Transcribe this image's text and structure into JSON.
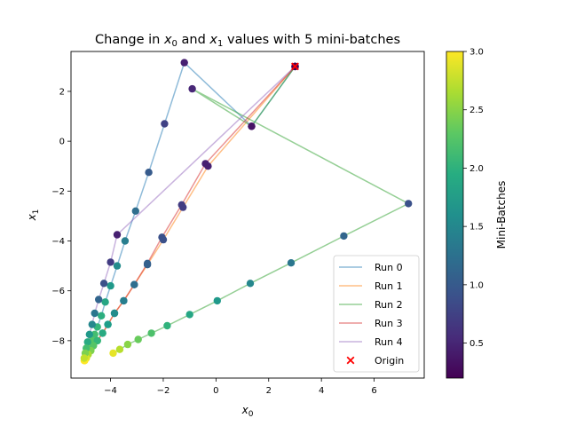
{
  "chart_data": {
    "type": "line",
    "title": {
      "prefix": "Change in ",
      "v0": "x",
      "s0": "0",
      "mid": " and ",
      "v1": "x",
      "s1": "1",
      "suffix": " values with 5 mini-batches"
    },
    "xlabel": {
      "var": "x",
      "sub": "0"
    },
    "ylabel": {
      "var": "x",
      "sub": "1"
    },
    "xlim": [
      -5.5,
      7.9
    ],
    "ylim": [
      -9.5,
      3.6
    ],
    "xticks": [
      -4,
      -2,
      0,
      2,
      4,
      6
    ],
    "yticks": [
      -8,
      -6,
      -4,
      -2,
      0,
      2
    ],
    "grid": false,
    "legend_position": "lower-right",
    "colorbar": {
      "label": "Mini-Batches",
      "range": [
        0.2,
        3.0
      ],
      "ticks": [
        0.5,
        1.0,
        1.5,
        2.0,
        2.5,
        3.0
      ],
      "tick_labels": [
        "0.5",
        "1.0",
        "1.5",
        "2.0",
        "2.5",
        "3.0"
      ]
    },
    "series": [
      {
        "name": "Run 0",
        "color": "#1f77b4",
        "points": [
          {
            "x": 3.0,
            "y": 3.0,
            "c": 0.2
          },
          {
            "x": 1.35,
            "y": 0.6,
            "c": 0.35
          },
          {
            "x": -1.2,
            "y": 3.15,
            "c": 0.45
          },
          {
            "x": -1.95,
            "y": 0.7,
            "c": 0.75
          },
          {
            "x": -2.55,
            "y": -1.25,
            "c": 1.0
          },
          {
            "x": -3.05,
            "y": -2.8,
            "c": 1.2
          },
          {
            "x": -3.45,
            "y": -4.0,
            "c": 1.4
          },
          {
            "x": -3.75,
            "y": -5.0,
            "c": 1.55
          },
          {
            "x": -4.0,
            "y": -5.8,
            "c": 1.7
          },
          {
            "x": -4.2,
            "y": -6.45,
            "c": 1.85
          },
          {
            "x": -4.35,
            "y": -7.0,
            "c": 1.95
          },
          {
            "x": -4.5,
            "y": -7.45,
            "c": 2.05
          },
          {
            "x": -4.6,
            "y": -7.75,
            "c": 2.15
          },
          {
            "x": -4.7,
            "y": -8.0,
            "c": 2.25
          },
          {
            "x": -4.78,
            "y": -8.2,
            "c": 2.4
          },
          {
            "x": -4.85,
            "y": -8.4,
            "c": 2.55
          },
          {
            "x": -4.9,
            "y": -8.55,
            "c": 2.7
          },
          {
            "x": -4.95,
            "y": -8.7,
            "c": 2.85
          },
          {
            "x": -5.0,
            "y": -8.8,
            "c": 3.0
          }
        ]
      },
      {
        "name": "Run 1",
        "color": "#ff7f0e",
        "points": [
          {
            "x": 3.0,
            "y": 3.0,
            "c": 0.2
          },
          {
            "x": -0.3,
            "y": -1.0,
            "c": 0.45
          },
          {
            "x": -1.25,
            "y": -2.65,
            "c": 0.7
          },
          {
            "x": -2.0,
            "y": -3.95,
            "c": 0.9
          },
          {
            "x": -2.6,
            "y": -4.95,
            "c": 1.05
          },
          {
            "x": -3.1,
            "y": -5.75,
            "c": 1.2
          },
          {
            "x": -3.5,
            "y": -6.4,
            "c": 1.4
          },
          {
            "x": -3.85,
            "y": -6.9,
            "c": 1.55
          },
          {
            "x": -4.1,
            "y": -7.35,
            "c": 1.75
          },
          {
            "x": -4.3,
            "y": -7.7,
            "c": 1.9
          },
          {
            "x": -4.5,
            "y": -8.0,
            "c": 2.05
          },
          {
            "x": -4.65,
            "y": -8.2,
            "c": 2.25
          },
          {
            "x": -4.75,
            "y": -8.4,
            "c": 2.45
          },
          {
            "x": -4.85,
            "y": -8.55,
            "c": 2.65
          },
          {
            "x": -4.92,
            "y": -8.7,
            "c": 2.85
          },
          {
            "x": -4.98,
            "y": -8.8,
            "c": 3.0
          }
        ]
      },
      {
        "name": "Run 2",
        "color": "#2ca02c",
        "points": [
          {
            "x": 3.0,
            "y": 3.0,
            "c": 0.2
          },
          {
            "x": 1.35,
            "y": 0.6,
            "c": 0.35
          },
          {
            "x": -0.9,
            "y": 2.1,
            "c": 0.5
          },
          {
            "x": 7.3,
            "y": -2.5,
            "c": 0.9
          },
          {
            "x": 4.85,
            "y": -3.8,
            "c": 1.1
          },
          {
            "x": 2.85,
            "y": -4.88,
            "c": 1.3
          },
          {
            "x": 1.3,
            "y": -5.7,
            "c": 1.5
          },
          {
            "x": 0.05,
            "y": -6.4,
            "c": 1.7
          },
          {
            "x": -1.0,
            "y": -6.95,
            "c": 1.85
          },
          {
            "x": -1.85,
            "y": -7.4,
            "c": 2.0
          },
          {
            "x": -2.45,
            "y": -7.7,
            "c": 2.2
          },
          {
            "x": -2.95,
            "y": -7.95,
            "c": 2.35
          },
          {
            "x": -3.35,
            "y": -8.15,
            "c": 2.5
          },
          {
            "x": -3.65,
            "y": -8.35,
            "c": 2.7
          },
          {
            "x": -3.9,
            "y": -8.5,
            "c": 2.9
          }
        ]
      },
      {
        "name": "Run 3",
        "color": "#d62728",
        "points": [
          {
            "x": 3.0,
            "y": 3.0,
            "c": 0.2
          },
          {
            "x": -0.4,
            "y": -0.9,
            "c": 0.45
          },
          {
            "x": -1.3,
            "y": -2.55,
            "c": 0.7
          },
          {
            "x": -2.05,
            "y": -3.85,
            "c": 0.9
          },
          {
            "x": -2.6,
            "y": -4.9,
            "c": 1.05
          },
          {
            "x": -3.1,
            "y": -5.75,
            "c": 1.2
          },
          {
            "x": -3.5,
            "y": -6.4,
            "c": 1.4
          },
          {
            "x": -3.85,
            "y": -6.9,
            "c": 1.55
          },
          {
            "x": -4.1,
            "y": -7.35,
            "c": 1.75
          },
          {
            "x": -4.3,
            "y": -7.7,
            "c": 1.9
          },
          {
            "x": -4.5,
            "y": -8.0,
            "c": 2.05
          },
          {
            "x": -4.65,
            "y": -8.2,
            "c": 2.25
          },
          {
            "x": -4.75,
            "y": -8.4,
            "c": 2.45
          },
          {
            "x": -4.85,
            "y": -8.55,
            "c": 2.65
          },
          {
            "x": -4.92,
            "y": -8.7,
            "c": 2.85
          },
          {
            "x": -4.98,
            "y": -8.8,
            "c": 3.0
          }
        ]
      },
      {
        "name": "Run 4",
        "color": "#9467bd",
        "points": [
          {
            "x": 3.0,
            "y": 3.0,
            "c": 0.2
          },
          {
            "x": -3.75,
            "y": -3.75,
            "c": 0.45
          },
          {
            "x": -4.0,
            "y": -4.85,
            "c": 0.7
          },
          {
            "x": -4.25,
            "y": -5.7,
            "c": 0.9
          },
          {
            "x": -4.45,
            "y": -6.35,
            "c": 1.1
          },
          {
            "x": -4.6,
            "y": -6.9,
            "c": 1.3
          },
          {
            "x": -4.7,
            "y": -7.35,
            "c": 1.5
          },
          {
            "x": -4.8,
            "y": -7.75,
            "c": 1.7
          },
          {
            "x": -4.87,
            "y": -8.05,
            "c": 1.9
          },
          {
            "x": -4.92,
            "y": -8.3,
            "c": 2.15
          },
          {
            "x": -4.96,
            "y": -8.5,
            "c": 2.45
          },
          {
            "x": -5.0,
            "y": -8.7,
            "c": 2.75
          }
        ]
      }
    ],
    "origin": {
      "name": "Origin",
      "x": 3.0,
      "y": 3.0,
      "color": "#ff0000"
    }
  }
}
